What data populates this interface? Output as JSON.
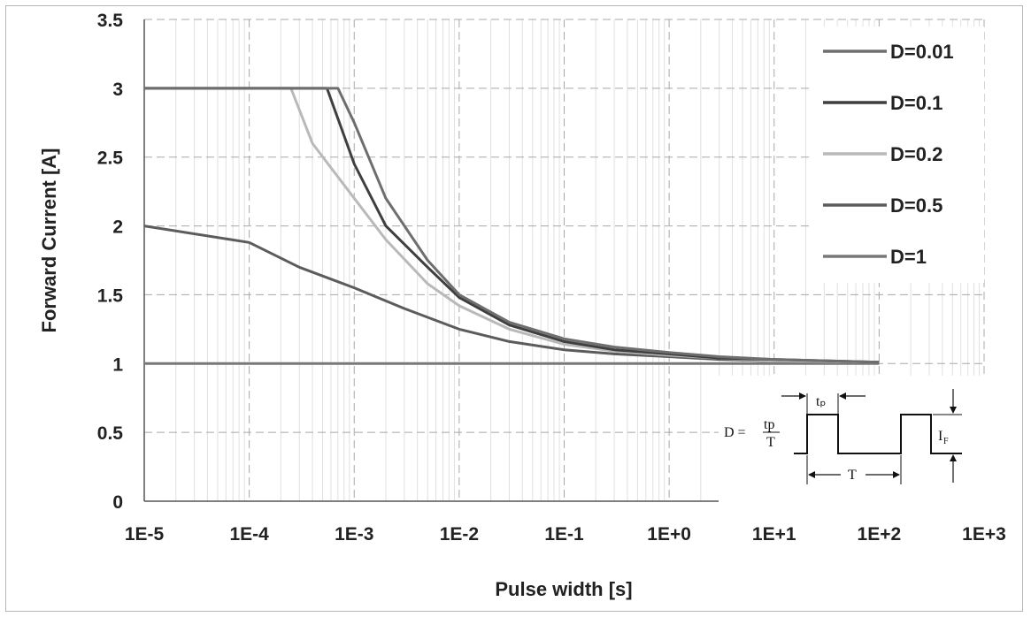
{
  "chart_data": {
    "type": "line",
    "xlabel": "Pulse width [s]",
    "ylabel": "Forward Current [A]",
    "x_scale": "log",
    "xlim": [
      1e-05,
      1000
    ],
    "ylim": [
      0,
      3.5
    ],
    "x_ticks": [
      {
        "value": 1e-05,
        "label": "1E-5"
      },
      {
        "value": 0.0001,
        "label": "1E-4"
      },
      {
        "value": 0.001,
        "label": "1E-3"
      },
      {
        "value": 0.01,
        "label": "1E-2"
      },
      {
        "value": 0.1,
        "label": "1E-1"
      },
      {
        "value": 1,
        "label": "1E+0"
      },
      {
        "value": 10,
        "label": "1E+1"
      },
      {
        "value": 100,
        "label": "1E+2"
      },
      {
        "value": 1000,
        "label": "1E+3"
      }
    ],
    "y_ticks": [
      {
        "value": 0,
        "label": "0"
      },
      {
        "value": 0.5,
        "label": "0.5"
      },
      {
        "value": 1,
        "label": "1"
      },
      {
        "value": 1.5,
        "label": "1.5"
      },
      {
        "value": 2,
        "label": "2"
      },
      {
        "value": 2.5,
        "label": "2.5"
      },
      {
        "value": 3,
        "label": "3"
      },
      {
        "value": 3.5,
        "label": "3.5"
      }
    ],
    "grid": true,
    "legend_position": "top-right",
    "series": [
      {
        "name": "D=0.01",
        "color": "#6e6e6e",
        "points": [
          [
            1e-05,
            3
          ],
          [
            0.0007,
            3
          ],
          [
            0.001,
            2.75
          ],
          [
            0.002,
            2.2
          ],
          [
            0.005,
            1.75
          ],
          [
            0.01,
            1.5
          ],
          [
            0.03,
            1.3
          ],
          [
            0.1,
            1.18
          ],
          [
            0.3,
            1.12
          ],
          [
            1,
            1.08
          ],
          [
            3,
            1.05
          ],
          [
            10,
            1.03
          ],
          [
            100,
            1.01
          ]
        ]
      },
      {
        "name": "D=0.1",
        "color": "#3f3f3f",
        "points": [
          [
            1e-05,
            3
          ],
          [
            0.00055,
            3
          ],
          [
            0.001,
            2.45
          ],
          [
            0.002,
            2.0
          ],
          [
            0.005,
            1.7
          ],
          [
            0.01,
            1.48
          ],
          [
            0.03,
            1.28
          ],
          [
            0.1,
            1.16
          ],
          [
            0.3,
            1.1
          ],
          [
            1,
            1.07
          ],
          [
            3,
            1.04
          ],
          [
            10,
            1.03
          ],
          [
            100,
            1.01
          ]
        ]
      },
      {
        "name": "D=0.2",
        "color": "#b9b9b9",
        "points": [
          [
            1e-05,
            3
          ],
          [
            0.00025,
            3
          ],
          [
            0.0004,
            2.6
          ],
          [
            0.001,
            2.2
          ],
          [
            0.002,
            1.9
          ],
          [
            0.005,
            1.58
          ],
          [
            0.01,
            1.42
          ],
          [
            0.03,
            1.25
          ],
          [
            0.1,
            1.14
          ],
          [
            0.3,
            1.09
          ],
          [
            1,
            1.06
          ],
          [
            3,
            1.04
          ],
          [
            10,
            1.02
          ],
          [
            100,
            1.01
          ]
        ]
      },
      {
        "name": "D=0.5",
        "color": "#5c5c5c",
        "points": [
          [
            1e-05,
            2
          ],
          [
            0.0001,
            1.88
          ],
          [
            0.0003,
            1.7
          ],
          [
            0.001,
            1.55
          ],
          [
            0.003,
            1.4
          ],
          [
            0.01,
            1.25
          ],
          [
            0.03,
            1.16
          ],
          [
            0.1,
            1.1
          ],
          [
            0.3,
            1.07
          ],
          [
            1,
            1.05
          ],
          [
            3,
            1.03
          ],
          [
            10,
            1.02
          ],
          [
            100,
            1.01
          ]
        ]
      },
      {
        "name": "D=1",
        "color": "#787878",
        "points": [
          [
            1e-05,
            1
          ],
          [
            100,
            1
          ]
        ]
      }
    ],
    "inset": {
      "formula_lhs": "D =",
      "formula_num": "tp",
      "formula_den": "T",
      "label_tp": "tₚ",
      "label_T": "T",
      "label_IF": "I",
      "label_IF_sub": "F"
    }
  }
}
